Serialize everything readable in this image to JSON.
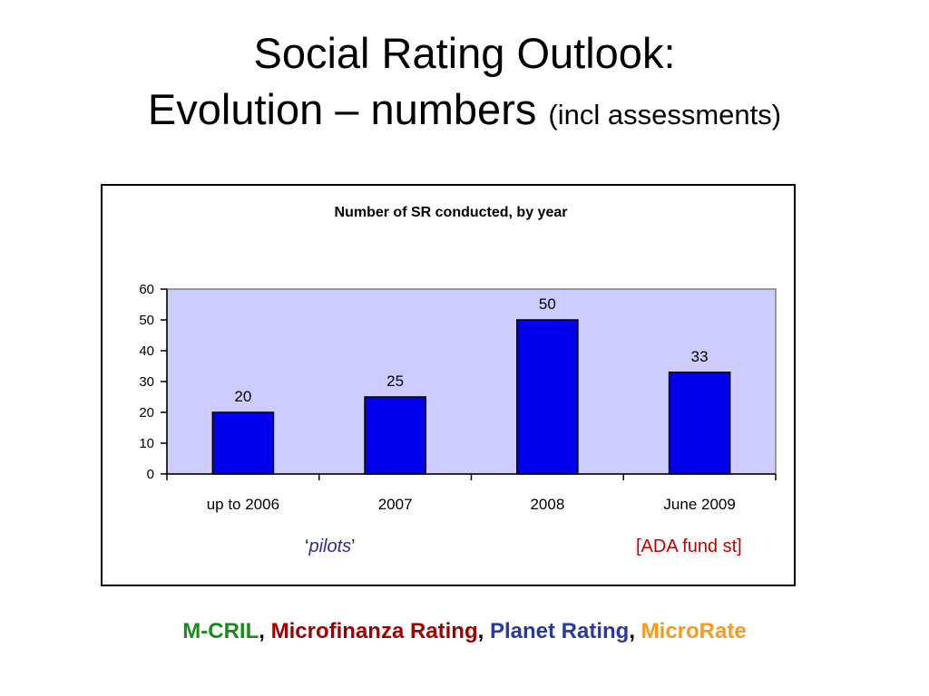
{
  "slide": {
    "title_line1": "Social Rating Outlook:",
    "title_line2_main": "Evolution – numbers",
    "title_line2_small": "(incl assessments)"
  },
  "chart_data": {
    "type": "bar",
    "title": "Number of SR conducted, by year",
    "categories": [
      "up to 2006",
      "2007",
      "2008",
      "June 2009"
    ],
    "values": [
      20,
      25,
      50,
      33
    ],
    "ylim": [
      0,
      60
    ],
    "yticks": [
      0,
      10,
      20,
      30,
      40,
      50,
      60
    ],
    "grid": false,
    "legend": "none",
    "colors": {
      "bar": "#0000ee",
      "plot_bg": "#ccccff",
      "bar_stroke": "#000000"
    }
  },
  "annotations": {
    "pilots_open": "‘",
    "pilots_text": "pilots",
    "pilots_close": "’",
    "ada": "[ADA fund st]"
  },
  "footer": {
    "mcril": "M-CRIL",
    "mfr": "Microfinanza Rating",
    "planet": "Planet Rating",
    "microrate": "MicroRate",
    "sep": ", "
  }
}
